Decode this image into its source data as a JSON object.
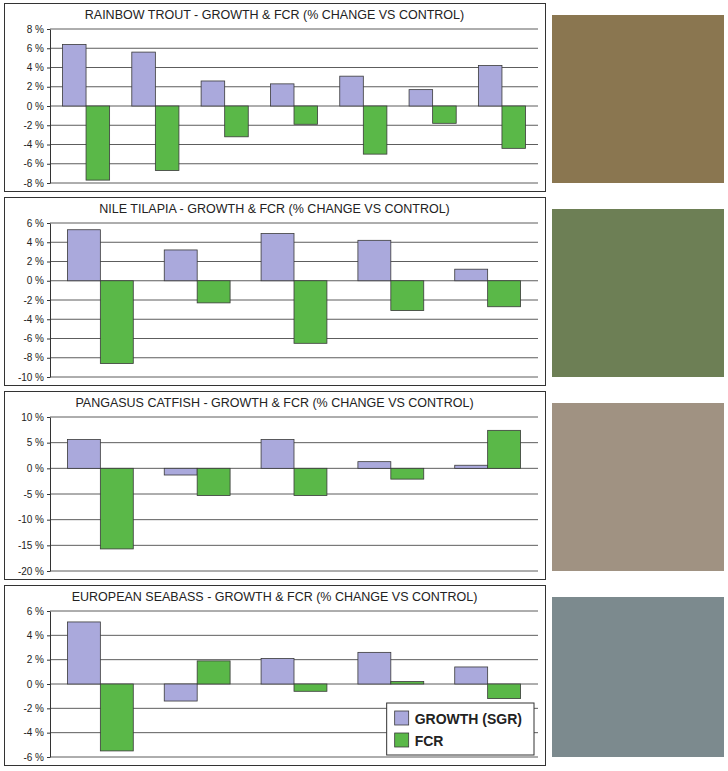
{
  "chart_data": [
    {
      "type": "bar",
      "title": "RAINBOW TROUT - GROWTH & FCR (% CHANGE VS CONTROL)",
      "categories": [
        null,
        null,
        null,
        null,
        null,
        null,
        null
      ],
      "series": [
        {
          "color": "#aaa9dc",
          "values": [
            6.4,
            5.6,
            2.6,
            2.3,
            3.1,
            1.7,
            4.2
          ]
        },
        {
          "color": "#5ab848",
          "values": [
            -7.7,
            -6.7,
            -3.2,
            -1.9,
            -5.0,
            -1.8,
            -4.4
          ]
        }
      ],
      "ylim": [
        -8,
        8
      ],
      "yticks": [
        {
          "value": -8,
          "label": "-8 %"
        },
        {
          "value": -6,
          "label": "-6 %"
        },
        {
          "value": -4,
          "label": "-4 %"
        },
        {
          "value": -2,
          "label": "-2 %"
        },
        {
          "value": 0,
          "label": "0 %"
        },
        {
          "value": 2,
          "label": "2 %"
        },
        {
          "value": 4,
          "label": "4 %"
        },
        {
          "value": 6,
          "label": "6 %"
        },
        {
          "value": 8,
          "label": "8 %"
        }
      ],
      "grid": true,
      "tick_labels": "y"
    },
    {
      "type": "bar",
      "title": "NILE TILAPIA - GROWTH & FCR (% CHANGE VS CONTROL)",
      "categories": [
        null,
        null,
        null,
        null,
        null
      ],
      "series": [
        {
          "color": "#aaa9dc",
          "values": [
            5.3,
            3.2,
            4.9,
            4.2,
            1.2
          ]
        },
        {
          "color": "#5ab848",
          "values": [
            -8.6,
            -2.3,
            -6.5,
            -3.1,
            -2.7
          ]
        }
      ],
      "ylim": [
        -10,
        6
      ],
      "yticks": [
        {
          "value": -10,
          "label": "-10 %"
        },
        {
          "value": -8,
          "label": "-8 %"
        },
        {
          "value": -6,
          "label": "-6 %"
        },
        {
          "value": -4,
          "label": "-4 %"
        },
        {
          "value": -2,
          "label": "-2 %"
        },
        {
          "value": 0,
          "label": "0 %"
        },
        {
          "value": 2,
          "label": "2 %"
        },
        {
          "value": 4,
          "label": "4 %"
        },
        {
          "value": 6,
          "label": "6 %"
        }
      ],
      "grid": true,
      "tick_labels": "y"
    },
    {
      "type": "bar",
      "title": "PANGASUS CATFISH - GROWTH & FCR (% CHANGE VS CONTROL)",
      "categories": [
        null,
        null,
        null,
        null,
        null
      ],
      "series": [
        {
          "color": "#aaa9dc",
          "values": [
            5.6,
            -1.3,
            5.6,
            1.3,
            0.6
          ]
        },
        {
          "color": "#5ab848",
          "values": [
            -15.7,
            -5.3,
            -5.3,
            -2.1,
            7.4
          ]
        }
      ],
      "ylim": [
        -20,
        10
      ],
      "yticks": [
        {
          "value": -20,
          "label": "-20 %"
        },
        {
          "value": -15,
          "label": "-15 %"
        },
        {
          "value": -10,
          "label": "-10 %"
        },
        {
          "value": -5,
          "label": "-5 %"
        },
        {
          "value": 0,
          "label": "0 %"
        },
        {
          "value": 5,
          "label": "5 %"
        },
        {
          "value": 10,
          "label": "10 %"
        }
      ],
      "grid": true,
      "tick_labels": "y"
    },
    {
      "type": "bar",
      "title": "EUROPEAN SEABASS - GROWTH & FCR (% CHANGE VS CONTROL)",
      "categories": [
        null,
        null,
        null,
        null,
        null
      ],
      "series": [
        {
          "name": "GROWTH (SGR)",
          "color": "#aaa9dc",
          "values": [
            5.1,
            -1.4,
            2.1,
            2.6,
            1.4
          ]
        },
        {
          "name": "FCR",
          "color": "#5ab848",
          "values": [
            -5.5,
            1.9,
            -0.6,
            0.2,
            -1.2
          ]
        }
      ],
      "ylim": [
        -6,
        6
      ],
      "yticks": [
        {
          "value": -6,
          "label": "-6 %"
        },
        {
          "value": -4,
          "label": "-4 %"
        },
        {
          "value": -2,
          "label": "-2 %"
        },
        {
          "value": 0,
          "label": "0 %"
        },
        {
          "value": 2,
          "label": "2 %"
        },
        {
          "value": 4,
          "label": "4 %"
        },
        {
          "value": 6,
          "label": "6 %"
        }
      ],
      "grid": true,
      "tick_labels": "y",
      "legend": "lower right"
    }
  ]
}
